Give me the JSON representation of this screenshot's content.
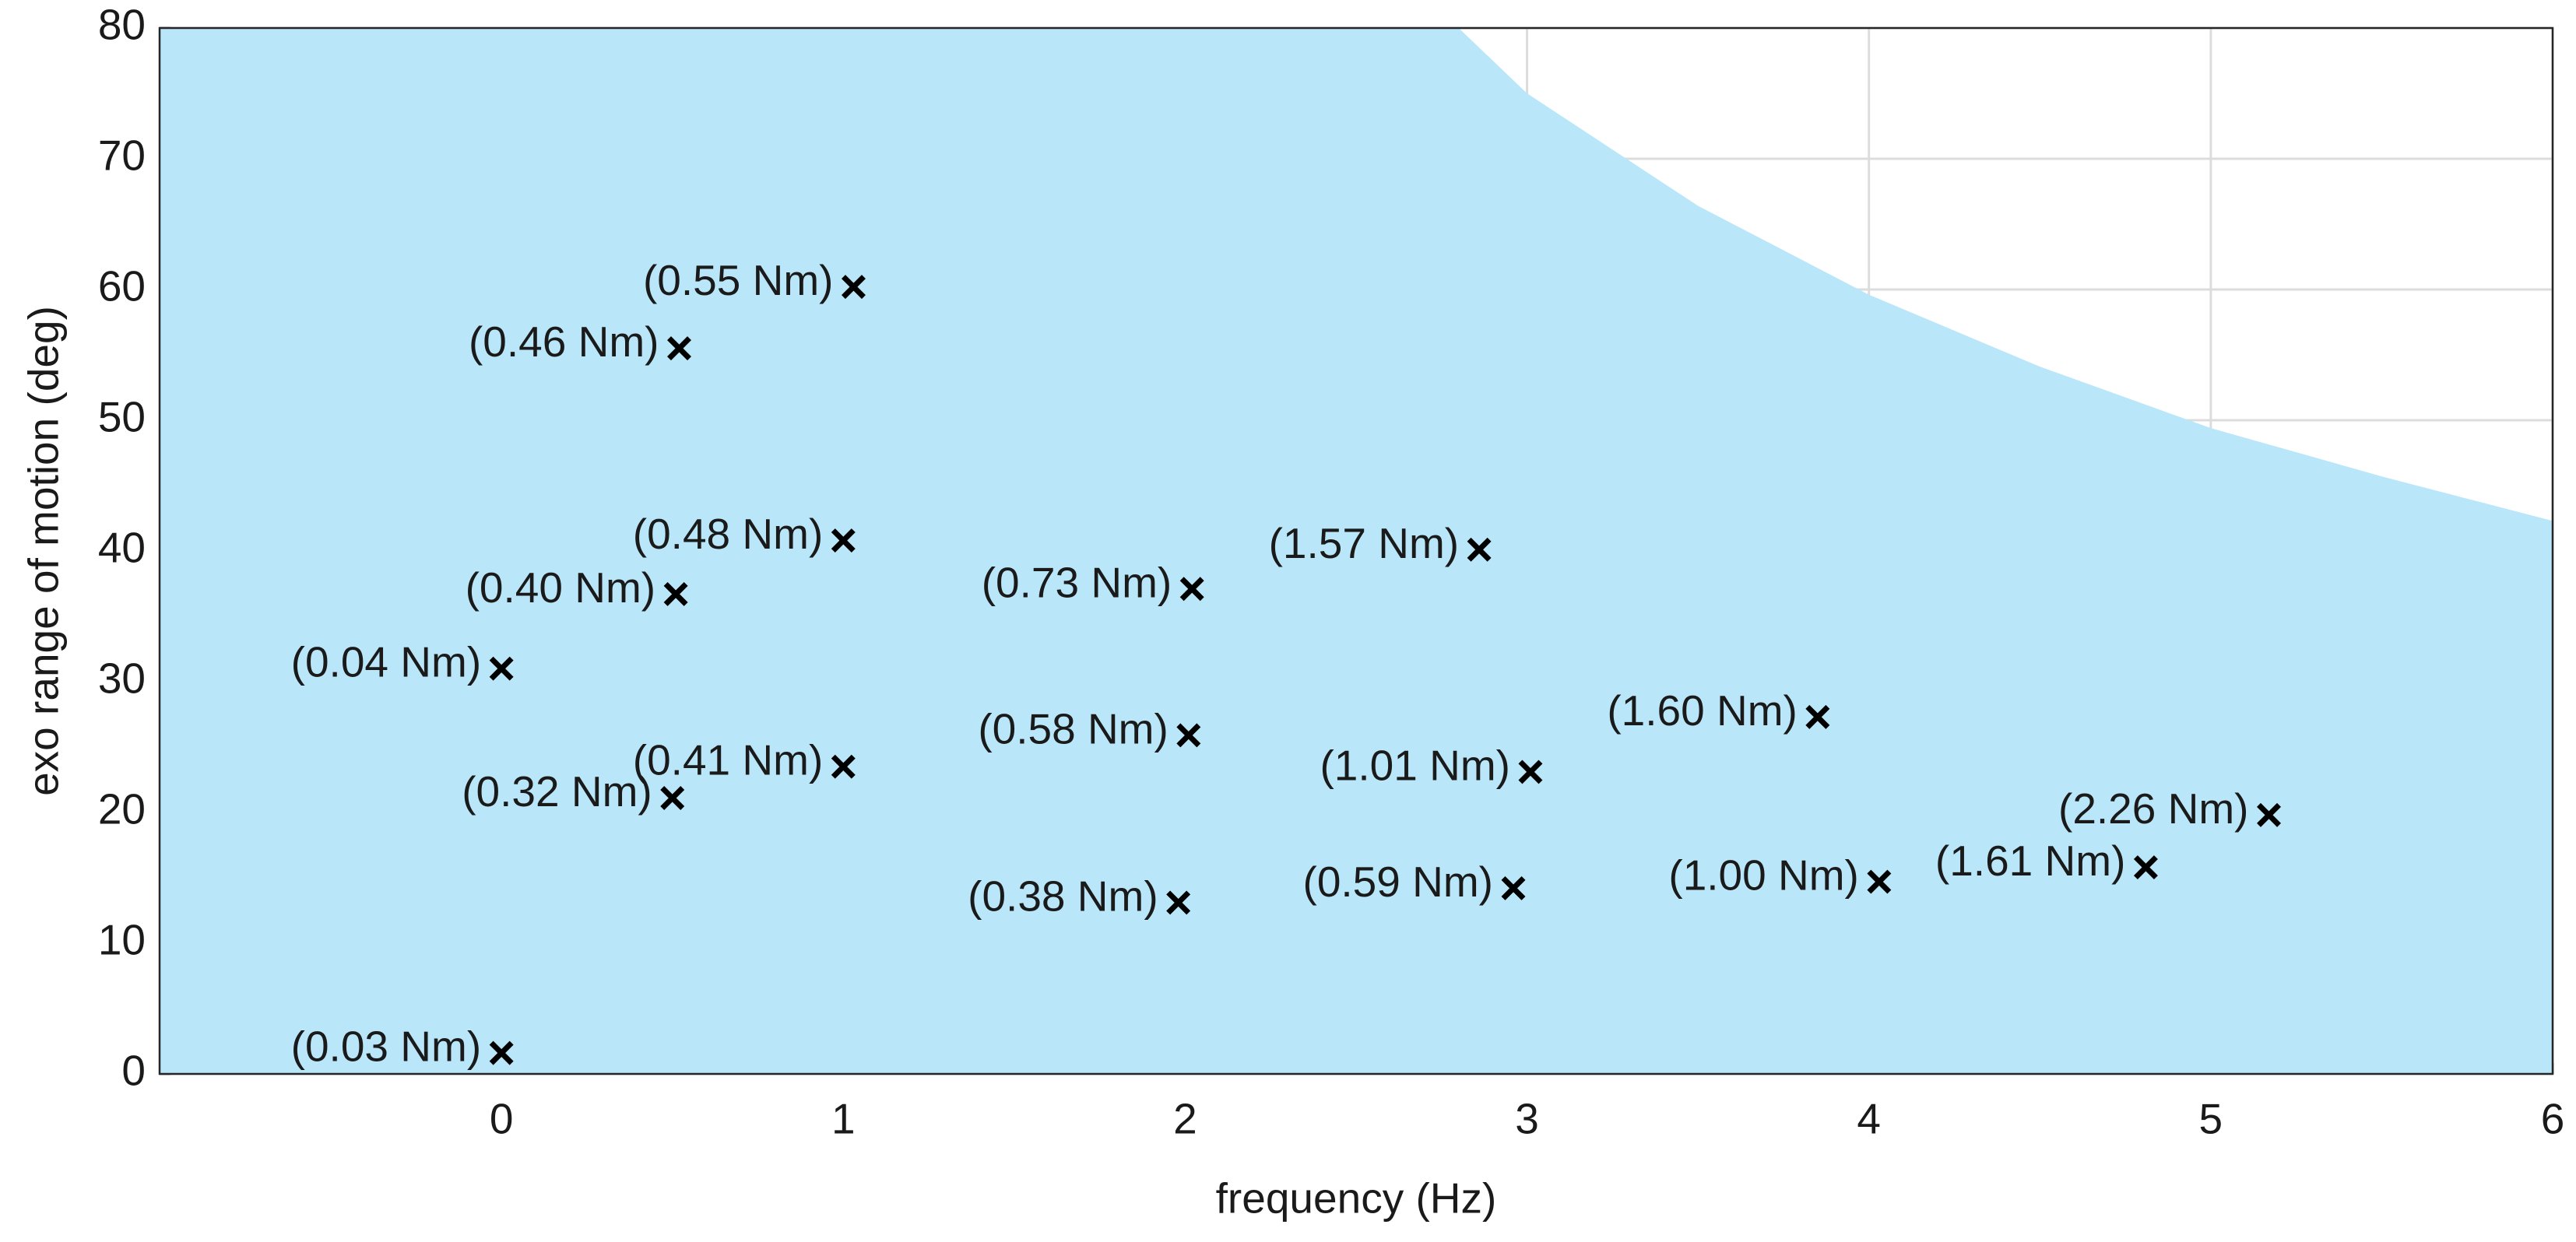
{
  "chart_data": {
    "type": "scatter",
    "x_label": "frequency (Hz)",
    "y_label": "exo range of motion (deg)",
    "xlim": [
      -1,
      6
    ],
    "xticks": [
      0,
      1,
      2,
      3,
      4,
      5,
      6
    ],
    "ylim": [
      0,
      80
    ],
    "yticks": [
      0,
      10,
      20,
      30,
      40,
      50,
      60,
      70,
      80
    ],
    "grid": true,
    "area": {
      "color": "#b9e6f8",
      "x": [
        2.8,
        3,
        3.5,
        4,
        4.5,
        5,
        5.5,
        6
      ],
      "y": [
        80,
        75,
        66.4,
        59.6,
        54.1,
        49.4,
        45.7,
        42.3
      ]
    },
    "series": [
      {
        "color": "#000000",
        "x": [
          1.03,
          0.52,
          1.0,
          0.51,
          0,
          1.0,
          0.5,
          0,
          2.02,
          2.01,
          1.98,
          2.86,
          3.01,
          2.96,
          3.85,
          4.03,
          4.81,
          5.17
        ],
        "values": [
          60.2,
          55.5,
          40.8,
          36.7,
          31.0,
          23.5,
          21.1,
          1.6,
          37.1,
          25.9,
          13.1,
          40.1,
          23.1,
          14.2,
          27.3,
          14.7,
          15.8,
          19.8
        ],
        "point_labels": [
          "(0.55 Nm)",
          "(0.46 Nm)",
          "(0.48 Nm)",
          "(0.40 Nm)",
          "(0.04 Nm)",
          "(0.41 Nm)",
          "(0.32 Nm)",
          "(0.03 Nm)",
          "(0.73 Nm)",
          "(0.58 Nm)",
          "(0.38 Nm)",
          "(1.57 Nm)",
          "(1.01 Nm)",
          "(0.59 Nm)",
          "(1.60 Nm)",
          "(1.00 Nm)",
          "(1.61 Nm)",
          "(2.26 Nm)"
        ]
      }
    ]
  }
}
